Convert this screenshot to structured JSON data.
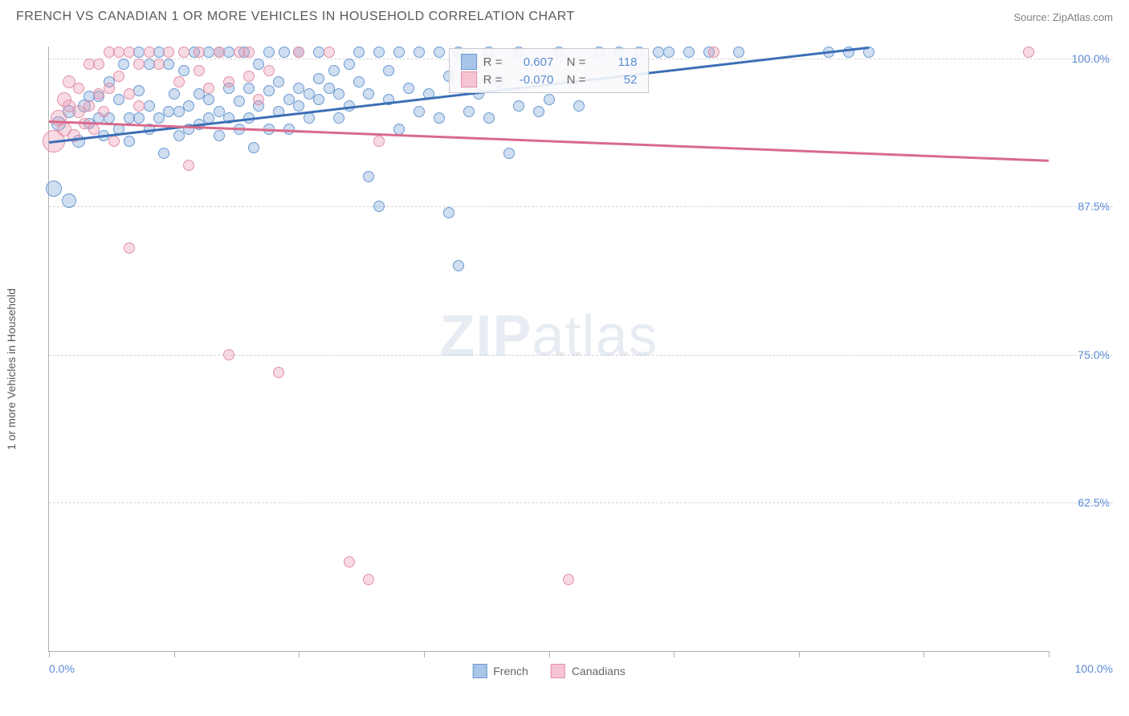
{
  "title": "FRENCH VS CANADIAN 1 OR MORE VEHICLES IN HOUSEHOLD CORRELATION CHART",
  "source_label": "Source: ZipAtlas.com",
  "y_axis_label": "1 or more Vehicles in Household",
  "watermark": {
    "part1": "ZIP",
    "part2": "atlas"
  },
  "chart": {
    "type": "scatter",
    "background_color": "#ffffff",
    "grid_color": "#d5d5d5",
    "axis_color": "#b0b0b0",
    "tick_label_color": "#5b8bd4",
    "tick_fontsize": 14,
    "xlim": [
      0,
      100
    ],
    "ylim": [
      50,
      101
    ],
    "x_tick_positions": [
      0,
      12.5,
      25,
      37.5,
      50,
      62.5,
      75,
      87.5,
      100
    ],
    "x_tick_labels_shown": {
      "0": "0.0%",
      "100": "100.0%"
    },
    "y_ticks": [
      {
        "v": 62.5,
        "label": "62.5%"
      },
      {
        "v": 75.0,
        "label": "75.0%"
      },
      {
        "v": 87.5,
        "label": "87.5%"
      },
      {
        "v": 100.0,
        "label": "100.0%"
      }
    ],
    "marker_stroke_width": 1.5,
    "series": [
      {
        "name": "French",
        "fill": "rgba(120,160,215,0.35)",
        "stroke": "#6a9ad2",
        "legend_swatch_fill": "#a8c4e8",
        "legend_swatch_stroke": "#6a9ad2",
        "R": "0.607",
        "N": "118",
        "trend": {
          "x1": 0,
          "y1": 93.0,
          "x2": 82,
          "y2": 101.0,
          "color": "#3b6fb5",
          "width": 3
        },
        "points": [
          {
            "x": 0.5,
            "y": 89.0,
            "r": 10
          },
          {
            "x": 2,
            "y": 88.0,
            "r": 9
          },
          {
            "x": 1,
            "y": 94.5,
            "r": 9
          },
          {
            "x": 2,
            "y": 95.5,
            "r": 8
          },
          {
            "x": 3,
            "y": 93.0,
            "r": 8
          },
          {
            "x": 3.5,
            "y": 96.0,
            "r": 8
          },
          {
            "x": 4,
            "y": 94.5,
            "r": 7
          },
          {
            "x": 4,
            "y": 96.8,
            "r": 7
          },
          {
            "x": 5,
            "y": 95.0,
            "r": 7
          },
          {
            "x": 5,
            "y": 96.8,
            "r": 7
          },
          {
            "x": 5.5,
            "y": 93.5,
            "r": 7
          },
          {
            "x": 6,
            "y": 98.0,
            "r": 7
          },
          {
            "x": 6,
            "y": 95.0,
            "r": 7
          },
          {
            "x": 7,
            "y": 94.0,
            "r": 7
          },
          {
            "x": 7,
            "y": 96.5,
            "r": 7
          },
          {
            "x": 7.5,
            "y": 99.5,
            "r": 7
          },
          {
            "x": 8,
            "y": 95.0,
            "r": 7
          },
          {
            "x": 8,
            "y": 93.0,
            "r": 7
          },
          {
            "x": 9,
            "y": 97.3,
            "r": 7
          },
          {
            "x": 9,
            "y": 95.0,
            "r": 7
          },
          {
            "x": 9,
            "y": 100.5,
            "r": 7
          },
          {
            "x": 10,
            "y": 94.0,
            "r": 7
          },
          {
            "x": 10,
            "y": 96.0,
            "r": 7
          },
          {
            "x": 10,
            "y": 99.5,
            "r": 7
          },
          {
            "x": 11,
            "y": 95.0,
            "r": 7
          },
          {
            "x": 11,
            "y": 100.5,
            "r": 7
          },
          {
            "x": 11.5,
            "y": 92.0,
            "r": 7
          },
          {
            "x": 12,
            "y": 95.5,
            "r": 7
          },
          {
            "x": 12,
            "y": 99.5,
            "r": 7
          },
          {
            "x": 12.5,
            "y": 97.0,
            "r": 7
          },
          {
            "x": 13,
            "y": 93.5,
            "r": 7
          },
          {
            "x": 13,
            "y": 95.5,
            "r": 7
          },
          {
            "x": 13.5,
            "y": 99.0,
            "r": 7
          },
          {
            "x": 14,
            "y": 96.0,
            "r": 7
          },
          {
            "x": 14,
            "y": 94.0,
            "r": 7
          },
          {
            "x": 14.5,
            "y": 100.5,
            "r": 7
          },
          {
            "x": 15,
            "y": 94.4,
            "r": 7
          },
          {
            "x": 15,
            "y": 97.0,
            "r": 7
          },
          {
            "x": 16,
            "y": 95.0,
            "r": 7
          },
          {
            "x": 16,
            "y": 96.5,
            "r": 7
          },
          {
            "x": 16,
            "y": 100.5,
            "r": 7
          },
          {
            "x": 17,
            "y": 93.5,
            "r": 7
          },
          {
            "x": 17,
            "y": 95.5,
            "r": 7
          },
          {
            "x": 17,
            "y": 100.5,
            "r": 7
          },
          {
            "x": 18,
            "y": 95.0,
            "r": 7
          },
          {
            "x": 18,
            "y": 97.5,
            "r": 7
          },
          {
            "x": 18,
            "y": 100.5,
            "r": 7
          },
          {
            "x": 19,
            "y": 94.0,
            "r": 7
          },
          {
            "x": 19,
            "y": 96.4,
            "r": 7
          },
          {
            "x": 19.5,
            "y": 100.5,
            "r": 7
          },
          {
            "x": 20,
            "y": 95.0,
            "r": 7
          },
          {
            "x": 20,
            "y": 97.5,
            "r": 7
          },
          {
            "x": 20.5,
            "y": 92.5,
            "r": 7
          },
          {
            "x": 21,
            "y": 96.0,
            "r": 7
          },
          {
            "x": 21,
            "y": 99.5,
            "r": 7
          },
          {
            "x": 22,
            "y": 97.3,
            "r": 7
          },
          {
            "x": 22,
            "y": 94.0,
            "r": 7
          },
          {
            "x": 22,
            "y": 100.5,
            "r": 7
          },
          {
            "x": 23,
            "y": 95.5,
            "r": 7
          },
          {
            "x": 23,
            "y": 98.0,
            "r": 7
          },
          {
            "x": 23.5,
            "y": 100.5,
            "r": 7
          },
          {
            "x": 24,
            "y": 96.5,
            "r": 7
          },
          {
            "x": 24,
            "y": 94.0,
            "r": 7
          },
          {
            "x": 25,
            "y": 97.5,
            "r": 7
          },
          {
            "x": 25,
            "y": 96.0,
            "r": 7
          },
          {
            "x": 25,
            "y": 100.5,
            "r": 7
          },
          {
            "x": 26,
            "y": 97.0,
            "r": 7
          },
          {
            "x": 26,
            "y": 95.0,
            "r": 7
          },
          {
            "x": 27,
            "y": 98.3,
            "r": 7
          },
          {
            "x": 27,
            "y": 96.5,
            "r": 7
          },
          {
            "x": 27,
            "y": 100.5,
            "r": 7
          },
          {
            "x": 28,
            "y": 97.5,
            "r": 7
          },
          {
            "x": 28.5,
            "y": 99.0,
            "r": 7
          },
          {
            "x": 29,
            "y": 97.0,
            "r": 7
          },
          {
            "x": 29,
            "y": 95.0,
            "r": 7
          },
          {
            "x": 30,
            "y": 99.5,
            "r": 7
          },
          {
            "x": 30,
            "y": 96.0,
            "r": 7
          },
          {
            "x": 31,
            "y": 100.5,
            "r": 7
          },
          {
            "x": 31,
            "y": 98.0,
            "r": 7
          },
          {
            "x": 32,
            "y": 90.0,
            "r": 7
          },
          {
            "x": 32,
            "y": 97.0,
            "r": 7
          },
          {
            "x": 33,
            "y": 87.5,
            "r": 7
          },
          {
            "x": 33,
            "y": 100.5,
            "r": 7
          },
          {
            "x": 34,
            "y": 96.5,
            "r": 7
          },
          {
            "x": 34,
            "y": 99.0,
            "r": 7
          },
          {
            "x": 35,
            "y": 100.5,
            "r": 7
          },
          {
            "x": 35,
            "y": 94.0,
            "r": 7
          },
          {
            "x": 36,
            "y": 97.5,
            "r": 7
          },
          {
            "x": 37,
            "y": 95.5,
            "r": 7
          },
          {
            "x": 37,
            "y": 100.5,
            "r": 7
          },
          {
            "x": 38,
            "y": 97.0,
            "r": 7
          },
          {
            "x": 39,
            "y": 100.5,
            "r": 7
          },
          {
            "x": 39,
            "y": 95.0,
            "r": 7
          },
          {
            "x": 40,
            "y": 87.0,
            "r": 7
          },
          {
            "x": 40,
            "y": 98.5,
            "r": 7
          },
          {
            "x": 41,
            "y": 82.5,
            "r": 7
          },
          {
            "x": 41,
            "y": 100.5,
            "r": 7
          },
          {
            "x": 42,
            "y": 95.5,
            "r": 7
          },
          {
            "x": 43,
            "y": 97.0,
            "r": 7
          },
          {
            "x": 44,
            "y": 100.5,
            "r": 7
          },
          {
            "x": 44,
            "y": 95.0,
            "r": 7
          },
          {
            "x": 45,
            "y": 98.0,
            "r": 7
          },
          {
            "x": 46,
            "y": 92.0,
            "r": 7
          },
          {
            "x": 47,
            "y": 96.0,
            "r": 7
          },
          {
            "x": 47,
            "y": 100.5,
            "r": 7
          },
          {
            "x": 49,
            "y": 95.5,
            "r": 7
          },
          {
            "x": 50,
            "y": 96.5,
            "r": 7
          },
          {
            "x": 51,
            "y": 100.5,
            "r": 7
          },
          {
            "x": 53,
            "y": 96.0,
            "r": 7
          },
          {
            "x": 55,
            "y": 100.5,
            "r": 7
          },
          {
            "x": 57,
            "y": 100.5,
            "r": 7
          },
          {
            "x": 59,
            "y": 100.5,
            "r": 7
          },
          {
            "x": 61,
            "y": 100.5,
            "r": 7
          },
          {
            "x": 62,
            "y": 100.5,
            "r": 7
          },
          {
            "x": 64,
            "y": 100.5,
            "r": 7
          },
          {
            "x": 66,
            "y": 100.5,
            "r": 7
          },
          {
            "x": 69,
            "y": 100.5,
            "r": 7
          },
          {
            "x": 78,
            "y": 100.5,
            "r": 7
          },
          {
            "x": 80,
            "y": 100.5,
            "r": 7
          },
          {
            "x": 82,
            "y": 100.5,
            "r": 7
          }
        ]
      },
      {
        "name": "Canadians",
        "fill": "rgba(235,150,175,0.35)",
        "stroke": "#e091a9",
        "legend_swatch_fill": "#f5c4d2",
        "legend_swatch_stroke": "#e091a9",
        "R": "-0.070",
        "N": "52",
        "trend": {
          "x1": 0,
          "y1": 94.8,
          "x2": 100,
          "y2": 91.5,
          "color": "#d96a8b",
          "width": 3
        },
        "points": [
          {
            "x": 0.5,
            "y": 93.0,
            "r": 14
          },
          {
            "x": 1,
            "y": 95.0,
            "r": 10
          },
          {
            "x": 1.5,
            "y": 96.5,
            "r": 9
          },
          {
            "x": 1.5,
            "y": 94.0,
            "r": 9
          },
          {
            "x": 2,
            "y": 96.0,
            "r": 8
          },
          {
            "x": 2,
            "y": 98.0,
            "r": 8
          },
          {
            "x": 2.5,
            "y": 93.5,
            "r": 8
          },
          {
            "x": 3,
            "y": 95.5,
            "r": 8
          },
          {
            "x": 3,
            "y": 97.5,
            "r": 7
          },
          {
            "x": 3.5,
            "y": 94.5,
            "r": 7
          },
          {
            "x": 4,
            "y": 99.5,
            "r": 7
          },
          {
            "x": 4,
            "y": 96.0,
            "r": 7
          },
          {
            "x": 4.5,
            "y": 94.0,
            "r": 7
          },
          {
            "x": 5,
            "y": 97.0,
            "r": 7
          },
          {
            "x": 5,
            "y": 99.5,
            "r": 7
          },
          {
            "x": 5.5,
            "y": 95.5,
            "r": 7
          },
          {
            "x": 6,
            "y": 97.5,
            "r": 7
          },
          {
            "x": 6,
            "y": 100.5,
            "r": 7
          },
          {
            "x": 6.5,
            "y": 93.0,
            "r": 7
          },
          {
            "x": 7,
            "y": 98.5,
            "r": 7
          },
          {
            "x": 7,
            "y": 100.5,
            "r": 7
          },
          {
            "x": 8,
            "y": 97.0,
            "r": 7
          },
          {
            "x": 8,
            "y": 100.5,
            "r": 7
          },
          {
            "x": 8,
            "y": 84.0,
            "r": 7
          },
          {
            "x": 9,
            "y": 96.0,
            "r": 7
          },
          {
            "x": 9,
            "y": 99.5,
            "r": 7
          },
          {
            "x": 10,
            "y": 100.5,
            "r": 7
          },
          {
            "x": 11,
            "y": 99.5,
            "r": 7
          },
          {
            "x": 12,
            "y": 100.5,
            "r": 7
          },
          {
            "x": 13,
            "y": 98.0,
            "r": 7
          },
          {
            "x": 13.5,
            "y": 100.5,
            "r": 7
          },
          {
            "x": 14,
            "y": 91.0,
            "r": 7
          },
          {
            "x": 15,
            "y": 99.0,
            "r": 7
          },
          {
            "x": 15,
            "y": 100.5,
            "r": 7
          },
          {
            "x": 16,
            "y": 97.5,
            "r": 7
          },
          {
            "x": 17,
            "y": 100.5,
            "r": 7
          },
          {
            "x": 18,
            "y": 98.0,
            "r": 7
          },
          {
            "x": 18,
            "y": 75.0,
            "r": 7
          },
          {
            "x": 19,
            "y": 100.5,
            "r": 7
          },
          {
            "x": 20,
            "y": 98.5,
            "r": 7
          },
          {
            "x": 20,
            "y": 100.5,
            "r": 7
          },
          {
            "x": 21,
            "y": 96.5,
            "r": 7
          },
          {
            "x": 22,
            "y": 99.0,
            "r": 7
          },
          {
            "x": 23,
            "y": 73.5,
            "r": 7
          },
          {
            "x": 25,
            "y": 100.5,
            "r": 7
          },
          {
            "x": 28,
            "y": 100.5,
            "r": 7
          },
          {
            "x": 30,
            "y": 57.5,
            "r": 7
          },
          {
            "x": 32,
            "y": 56.0,
            "r": 7
          },
          {
            "x": 33,
            "y": 93.0,
            "r": 7
          },
          {
            "x": 52,
            "y": 56.0,
            "r": 7
          },
          {
            "x": 66.5,
            "y": 100.5,
            "r": 7
          },
          {
            "x": 98,
            "y": 100.5,
            "r": 7
          }
        ]
      }
    ],
    "bottom_legend": [
      {
        "label": "French",
        "fill": "#a8c4e8",
        "stroke": "#6a9ad2"
      },
      {
        "label": "Canadians",
        "fill": "#f5c4d2",
        "stroke": "#e091a9"
      }
    ]
  }
}
